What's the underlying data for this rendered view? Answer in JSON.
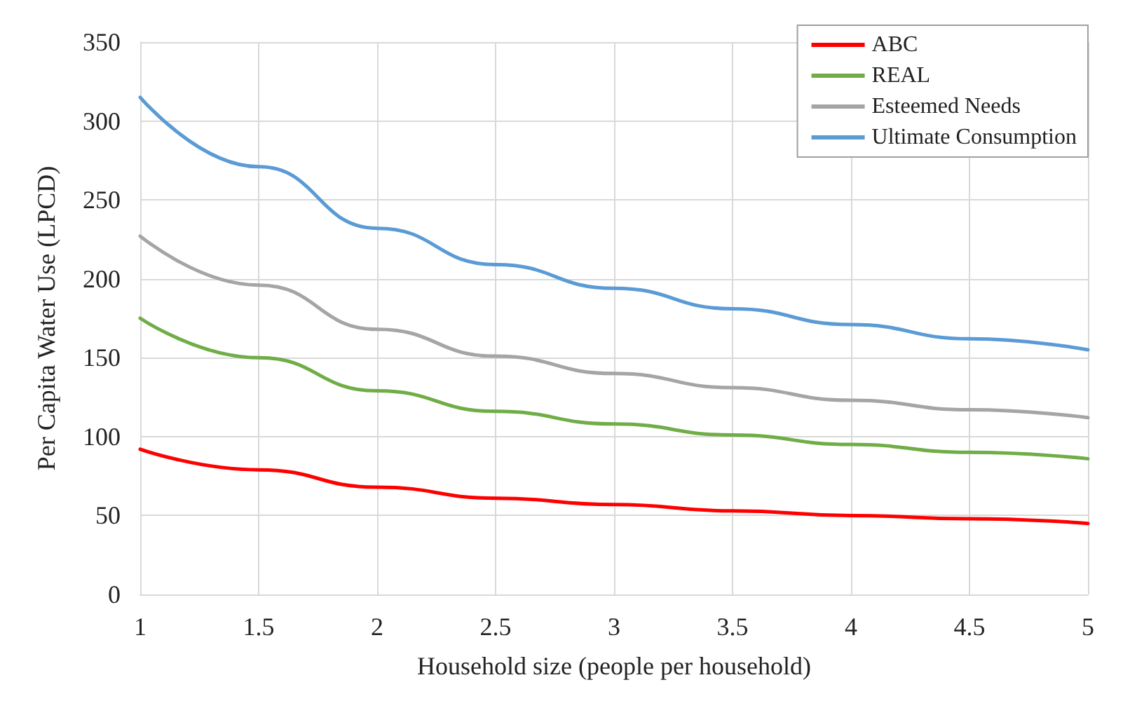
{
  "chart_data": {
    "type": "line",
    "xlabel": "Household size (people per household)",
    "ylabel": "Per Capita Water Use (LPCD)",
    "x": [
      1,
      1.5,
      2,
      2.5,
      3,
      3.5,
      4,
      4.5,
      5
    ],
    "series": [
      {
        "name": "ABC",
        "color": "#ff0000",
        "values": [
          92,
          79,
          68,
          61,
          57,
          53,
          50,
          48,
          45
        ]
      },
      {
        "name": "REAL",
        "color": "#70ad47",
        "values": [
          175,
          150,
          129,
          116,
          108,
          101,
          95,
          90,
          86
        ]
      },
      {
        "name": "Esteemed Needs",
        "color": "#a5a5a5",
        "values": [
          227,
          196,
          168,
          151,
          140,
          131,
          123,
          117,
          112
        ]
      },
      {
        "name": "Ultimate Consumption",
        "color": "#5b9bd5",
        "values": [
          315,
          271,
          232,
          209,
          194,
          181,
          171,
          162,
          155
        ]
      }
    ],
    "xlim": [
      1,
      5
    ],
    "xticks": [
      1,
      1.5,
      2,
      2.5,
      3,
      3.5,
      4,
      4.5,
      5
    ],
    "ylim": [
      0,
      350
    ],
    "yticks": [
      0,
      50,
      100,
      150,
      200,
      250,
      300,
      350
    ],
    "grid": true,
    "legend": "top right",
    "marker": "none",
    "line_style": "solid"
  }
}
